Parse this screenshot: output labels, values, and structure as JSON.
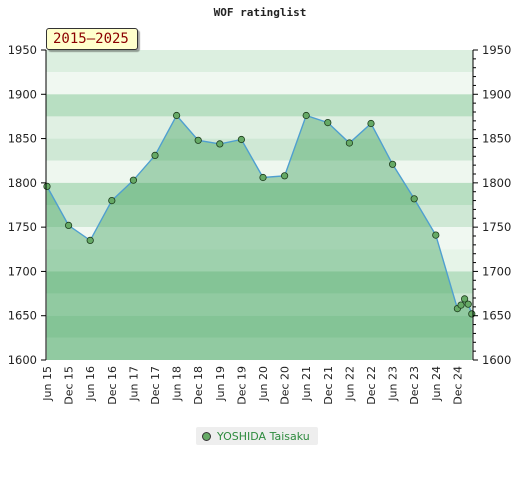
{
  "chart_data": {
    "type": "area",
    "title": "WOF ratinglist",
    "badge": "2015–2025",
    "ylim": [
      1600,
      1950
    ],
    "yticks": [
      1600,
      1650,
      1700,
      1750,
      1800,
      1850,
      1900,
      1950
    ],
    "ytick_labels": [
      "1600",
      "1650",
      "1700",
      "1750",
      "1800",
      "1850",
      "1900",
      "1950"
    ],
    "xtick_labels": [
      "Jun 15",
      "Dec 15",
      "Jun 16",
      "Dec 16",
      "Jun 17",
      "Dec 17",
      "Jun 18",
      "Dec 18",
      "Jun 19",
      "Dec 19",
      "Jun 20",
      "Dec 20",
      "Jun 21",
      "Dec 21",
      "Jun 22",
      "Dec 22",
      "Jun 23",
      "Dec 23",
      "Jun 24",
      "Dec 24"
    ],
    "series": [
      {
        "name": "YOSHIDA Taisaku",
        "x": [
          "2015-06",
          "2015-12",
          "2016-06",
          "2016-12",
          "2017-06",
          "2017-12",
          "2018-06",
          "2018-12",
          "2019-06",
          "2019-12",
          "2020-06",
          "2020-12",
          "2021-06",
          "2021-12",
          "2022-06",
          "2022-12",
          "2023-06",
          "2023-12",
          "2024-06",
          "2024-12",
          "2025-01",
          "2025-02",
          "2025-03",
          "2025-04"
        ],
        "values": [
          1796,
          1752,
          1735,
          1780,
          1803,
          1831,
          1876,
          1848,
          1844,
          1849,
          1806,
          1808,
          1876,
          1868,
          1845,
          1867,
          1821,
          1782,
          1741,
          1658,
          1662,
          1669,
          1663,
          1652
        ]
      }
    ],
    "legend_position": "bottom",
    "colors": {
      "line": "#4f9fd0",
      "marker": "#66aa66",
      "area": "#7cc38e",
      "band_light_a": "#f2f9f3",
      "band_light_b": "#e0f0e3",
      "band_mid": "#bfe2c7",
      "band_dark": "#96cfa5"
    }
  }
}
